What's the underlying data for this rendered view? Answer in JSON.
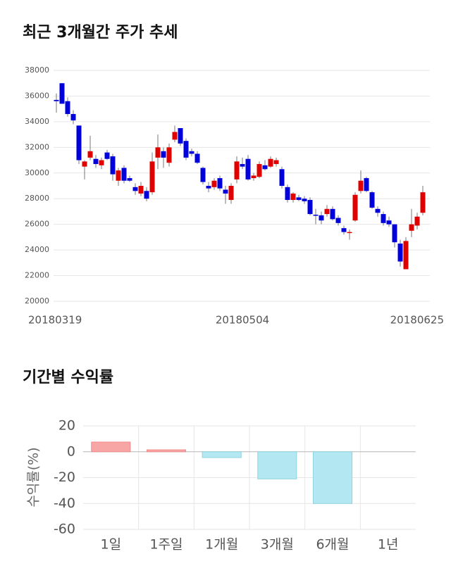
{
  "chart_data": [
    {
      "type": "candlestick",
      "title": "최근 3개월간 주가 추세",
      "categories": [
        "20180319",
        null,
        null,
        null,
        null,
        null,
        null,
        null,
        null,
        null,
        null,
        null,
        null,
        null,
        null,
        null,
        null,
        null,
        null,
        null,
        null,
        null,
        null,
        null,
        null,
        null,
        null,
        null,
        null,
        null,
        null,
        null,
        null,
        "20180504",
        null,
        null,
        null,
        null,
        null,
        null,
        null,
        null,
        null,
        null,
        null,
        null,
        null,
        null,
        null,
        null,
        null,
        null,
        null,
        null,
        null,
        null,
        null,
        null,
        null,
        null,
        null,
        null,
        null,
        null,
        null,
        "20180625"
      ],
      "open": [
        35700,
        37000,
        35600,
        34600,
        33700,
        30500,
        31200,
        31100,
        30600,
        31600,
        31300,
        29400,
        30400,
        29600,
        28900,
        28400,
        28600,
        28500,
        31200,
        31700,
        30800,
        32600,
        33500,
        32500,
        31700,
        31500,
        30400,
        29000,
        28900,
        29600,
        28700,
        27900,
        29500,
        30700,
        31100,
        29600,
        29700,
        30600,
        30500,
        30700,
        30300,
        28900,
        27900,
        28100,
        28000,
        27900,
        26750,
        26700,
        26800,
        27200,
        26500,
        25700,
        25400,
        26300,
        28600,
        29600,
        28500,
        27200,
        26800,
        26300,
        26000,
        24500,
        22500,
        25500,
        25900,
        26900
      ],
      "high": [
        36200,
        37000,
        35900,
        34900,
        33700,
        31000,
        32900,
        31400,
        31200,
        31800,
        31500,
        30400,
        30600,
        29800,
        29200,
        29300,
        28900,
        31600,
        33000,
        32000,
        32300,
        33700,
        33500,
        32700,
        31900,
        31700,
        30500,
        29300,
        29600,
        29800,
        29000,
        29200,
        31300,
        31200,
        31400,
        30000,
        30900,
        31000,
        31300,
        31200,
        30500,
        29100,
        28500,
        28300,
        28200,
        28100,
        27200,
        27000,
        27500,
        27400,
        26700,
        25900,
        25600,
        28500,
        30200,
        29700,
        28600,
        27400,
        27000,
        26600,
        26000,
        24800,
        25000,
        27200,
        26900,
        29000
      ],
      "low": [
        34700,
        35400,
        34400,
        33800,
        30700,
        29500,
        31000,
        30400,
        30300,
        31000,
        29400,
        29000,
        29200,
        29300,
        28300,
        28200,
        27800,
        28300,
        30300,
        30400,
        30500,
        32400,
        32100,
        31000,
        31300,
        30700,
        29100,
        28500,
        28700,
        28600,
        27600,
        27600,
        29200,
        30300,
        29400,
        29400,
        29600,
        30200,
        30400,
        30500,
        28800,
        27700,
        27700,
        27800,
        27600,
        26700,
        26000,
        26000,
        26600,
        26300,
        25900,
        25200,
        24800,
        26200,
        28400,
        28500,
        27200,
        26600,
        25900,
        25800,
        24200,
        22700,
        22500,
        25000,
        25600,
        26700
      ],
      "close": [
        35600,
        35400,
        34600,
        34100,
        31000,
        30900,
        31700,
        30700,
        31000,
        31100,
        29900,
        30200,
        29400,
        29400,
        28600,
        29000,
        28000,
        30900,
        32000,
        31200,
        32000,
        33200,
        32300,
        31200,
        31500,
        30800,
        29300,
        28800,
        29400,
        28800,
        28400,
        29000,
        30900,
        30500,
        29500,
        29800,
        30700,
        30300,
        31100,
        31000,
        29000,
        27900,
        28400,
        27900,
        27800,
        26800,
        26700,
        26300,
        27200,
        26400,
        26100,
        25400,
        25400,
        28300,
        29400,
        28600,
        27300,
        26900,
        26100,
        26000,
        24600,
        23100,
        24700,
        26000,
        26600,
        28500
      ],
      "up_color": "#e00000",
      "down_color": "#0000dd",
      "ylim": [
        20000,
        38000
      ],
      "yticks": [
        20000,
        22000,
        24000,
        26000,
        28000,
        30000,
        32000,
        34000,
        36000,
        38000
      ],
      "grid": true
    },
    {
      "type": "bar",
      "title": "기간별 수익률",
      "ylabel": "수익률(%)",
      "categories": [
        "1일",
        "1주일",
        "1개월",
        "3개월",
        "6개월",
        "1년"
      ],
      "values": [
        7.5,
        1.5,
        -4.5,
        -21,
        -40,
        null
      ],
      "positive_color": "#f7a5a5",
      "negative_color": "#b3e8f2",
      "ylim": [
        -60,
        20
      ],
      "yticks": [
        20,
        0,
        -20,
        -40,
        -60
      ],
      "grid": true
    }
  ]
}
